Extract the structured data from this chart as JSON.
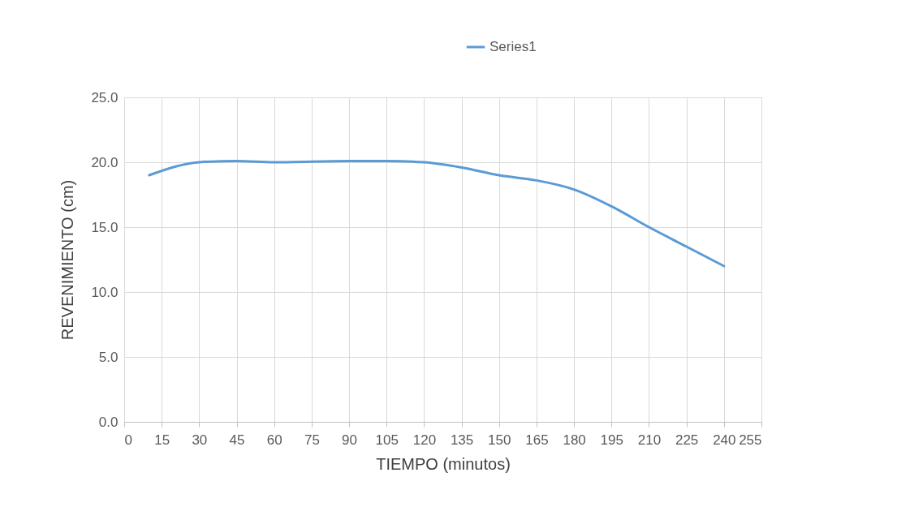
{
  "chart_data": {
    "type": "line",
    "xlabel": "TIEMPO (minutos)",
    "ylabel": "REVENIMIENTO (cm)",
    "x": [
      10,
      30,
      45,
      60,
      90,
      105,
      120,
      135,
      150,
      165,
      180,
      195,
      210,
      225,
      240
    ],
    "series": [
      {
        "name": "Series1",
        "color": "#5b9bd5",
        "values": [
          19.0,
          20.0,
          20.1,
          20.0,
          20.1,
          20.1,
          20.0,
          19.6,
          19.0,
          18.6,
          17.9,
          16.6,
          15.0,
          13.5,
          12.0
        ]
      }
    ],
    "xlim": [
      0,
      255
    ],
    "xticks": [
      0,
      15,
      30,
      45,
      60,
      75,
      90,
      105,
      120,
      135,
      150,
      165,
      180,
      195,
      210,
      225,
      240,
      255
    ],
    "ylim": [
      0,
      25
    ],
    "yticks": [
      {
        "value": 0,
        "label": "0.0"
      },
      {
        "value": 5,
        "label": "5.0"
      },
      {
        "value": 10,
        "label": "10.0"
      },
      {
        "value": 15,
        "label": "15.0"
      },
      {
        "value": 20,
        "label": "20.0"
      },
      {
        "value": 25,
        "label": "25.0"
      }
    ],
    "grid": true,
    "legend": "top",
    "marker": "none",
    "line_style": "solid"
  }
}
